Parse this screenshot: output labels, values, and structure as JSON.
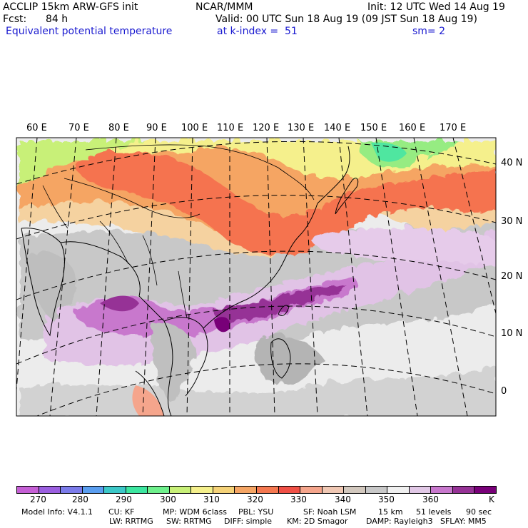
{
  "header": {
    "model": "ACCLIP 15km ARW-GFS init",
    "center": "NCAR/MMM",
    "init": "Init: 12 UTC Wed 14 Aug 19",
    "fcst_label": "Fcst:",
    "fcst_value": "84 h",
    "valid": "Valid: 00 UTC Sun 18 Aug 19 (09 JST Sun 18 Aug 19)",
    "field": "Equivalent potential temperature",
    "level": "at k-index =  51",
    "smoothing": "sm= 2"
  },
  "map": {
    "lon_labels": [
      "60 E",
      "70 E",
      "80 E",
      "90 E",
      "100 E",
      "110 E",
      "120 E",
      "130 E",
      "140 E",
      "150 E",
      "160 E",
      "170 E"
    ],
    "lat_labels": [
      "40 N",
      "30 N",
      "20 N",
      "10 N",
      "0"
    ]
  },
  "colorbar": {
    "unit": "K",
    "tick_labels": [
      "270",
      "280",
      "290",
      "300",
      "310",
      "320",
      "330",
      "340",
      "350",
      "360"
    ],
    "colors": [
      "#c55fd5",
      "#9b5fe0",
      "#7b7bea",
      "#5a9ef0",
      "#3cc8c8",
      "#3ce6a0",
      "#6ef08c",
      "#c8f078",
      "#f5f08c",
      "#f5d278",
      "#f5a564",
      "#f57850",
      "#f05046",
      "#f5a58c",
      "#f0c8b4",
      "#d2c8be",
      "#c8c8c8",
      "#f0f0f0",
      "#e1c8e6",
      "#c878cd",
      "#963296",
      "#780078"
    ]
  },
  "footer": {
    "model_info": "Model Info: V4.1.1",
    "cu": "CU: KF",
    "mp": "MP: WDM 6class",
    "pbl": "PBL: YSU",
    "sf": "SF: Noah LSM",
    "res": "15 km",
    "levels": "51 levels",
    "dt": "90 sec",
    "lw": "LW: RRTMG",
    "sw": "SW: RRTMG",
    "diff": "DIFF: simple",
    "km": "KM: 2D Smagor",
    "damp": "DAMP: Rayleigh3",
    "sflay": "SFLAY: MM5"
  }
}
